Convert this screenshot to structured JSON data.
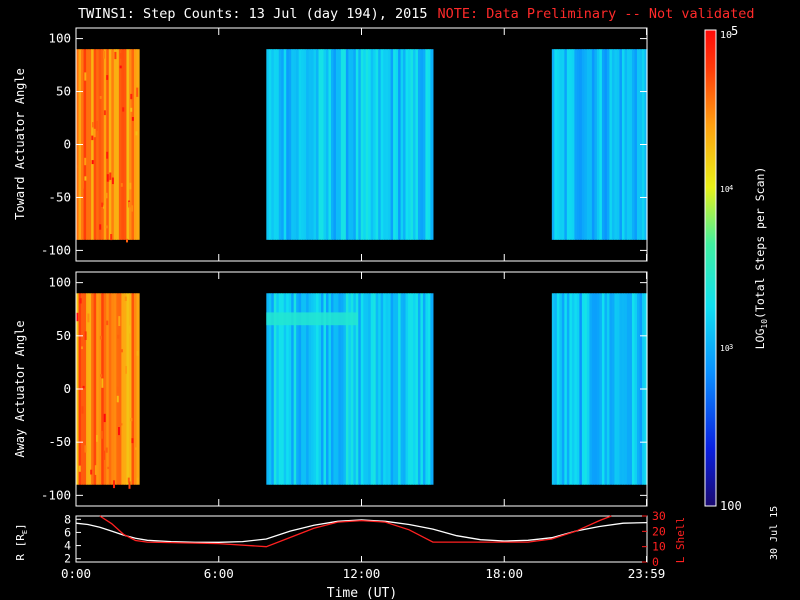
{
  "header": {
    "title": "TWINS1: Step Counts: 13 Jul (day 194), 2015",
    "note": "NOTE: Data Preliminary -- Not validated"
  },
  "stamp": "30 Jul 15",
  "colors": {
    "note": "#ff2a2a",
    "lshell": "#ff2020",
    "radius": "#ffffff",
    "background": "#000000"
  },
  "chart_data": [
    {
      "type": "heatmap",
      "name": "toward-panel",
      "ylabel": "Toward Actuator Angle",
      "ylim": [
        -110,
        110
      ],
      "yticks": [
        "100",
        "50",
        "0",
        "-50",
        "-100"
      ],
      "ytick_values": [
        100,
        50,
        0,
        -50,
        -100
      ],
      "xlim": [
        0,
        24
      ],
      "angle_range": [
        -90,
        90
      ],
      "data_blocks": [
        {
          "start_hr": 0.0,
          "end_hr": 2.65,
          "level": "high",
          "typical_counts": 30000
        },
        {
          "start_hr": 8.0,
          "end_hr": 15.0,
          "level": "medium",
          "typical_counts": 1300
        },
        {
          "start_hr": 20.0,
          "end_hr": 24.0,
          "level": "medium",
          "typical_counts": 1200
        }
      ]
    },
    {
      "type": "heatmap",
      "name": "away-panel",
      "ylabel": "Away Actuator Angle",
      "ylim": [
        -110,
        110
      ],
      "yticks": [
        "100",
        "50",
        "0",
        "-50",
        "-100"
      ],
      "ytick_values": [
        100,
        50,
        0,
        -50,
        -100
      ],
      "xlim": [
        0,
        24
      ],
      "angle_range": [
        -90,
        90
      ],
      "data_blocks": [
        {
          "start_hr": 0.0,
          "end_hr": 2.65,
          "level": "high",
          "typical_counts": 30000
        },
        {
          "start_hr": 8.0,
          "end_hr": 15.0,
          "level": "medium",
          "typical_counts": 1400
        },
        {
          "start_hr": 20.0,
          "end_hr": 24.0,
          "level": "medium",
          "typical_counts": 1200
        }
      ]
    },
    {
      "type": "colorbar",
      "scale": "log",
      "range": [
        100,
        100000
      ],
      "tick_labels": [
        "10",
        "5",
        "10",
        "4",
        "10",
        "3",
        "100"
      ],
      "tick_values": [
        100000,
        10000,
        1000,
        100
      ],
      "label_parts": [
        "LOG",
        "10",
        "(Total Steps per Scan)"
      ]
    },
    {
      "type": "line",
      "name": "orbit-panel",
      "xlabel": "Time (UT)",
      "xticks": [
        "0:00",
        "6:00",
        "12:00",
        "18:00",
        "23:59"
      ],
      "xtick_values": [
        0,
        6,
        12,
        18,
        23.98
      ],
      "xlim": [
        0,
        24
      ],
      "ylim_left": [
        1.5,
        8.5
      ],
      "ylim_right": [
        0,
        30
      ],
      "yticks_left": [
        "8",
        "6",
        "4",
        "2"
      ],
      "ytick_values_left": [
        8,
        6,
        4,
        2
      ],
      "yticks_right": [
        "30",
        "20",
        "10",
        "0"
      ],
      "ytick_values_right": [
        30,
        20,
        10,
        0
      ],
      "ylabel_left_parts": [
        "R [R",
        "E",
        "]"
      ],
      "ylabel_right": "L Shell",
      "series": [
        {
          "x": [
            0,
            0.5,
            1,
            1.5,
            2,
            2.5,
            3,
            4,
            5,
            6,
            7,
            8,
            9,
            10,
            11,
            12,
            13,
            14,
            15,
            16,
            17,
            18,
            19,
            20,
            21,
            22,
            23,
            24
          ],
          "values": [
            7.4,
            7.2,
            6.8,
            6.2,
            5.6,
            5.1,
            4.8,
            4.6,
            4.5,
            4.5,
            4.6,
            5.0,
            6.2,
            7.1,
            7.7,
            7.9,
            7.7,
            7.2,
            6.5,
            5.5,
            4.9,
            4.7,
            4.8,
            5.2,
            6.2,
            6.9,
            7.4,
            7.5
          ],
          "axis": "left"
        },
        {
          "x": [
            1.0,
            1.5,
            2.0,
            2.5,
            3.0,
            6.0,
            8.0,
            9.0,
            10.0,
            11.0,
            12.0,
            13.0,
            14.0,
            15.0,
            17.0,
            19.0,
            20.0,
            21.0,
            22.0,
            22.5
          ],
          "values": [
            30,
            25,
            18,
            14,
            13,
            12,
            10,
            16,
            22,
            26,
            27,
            26,
            21,
            13,
            13,
            13,
            15,
            20,
            27,
            30
          ],
          "axis": "right"
        }
      ]
    }
  ]
}
